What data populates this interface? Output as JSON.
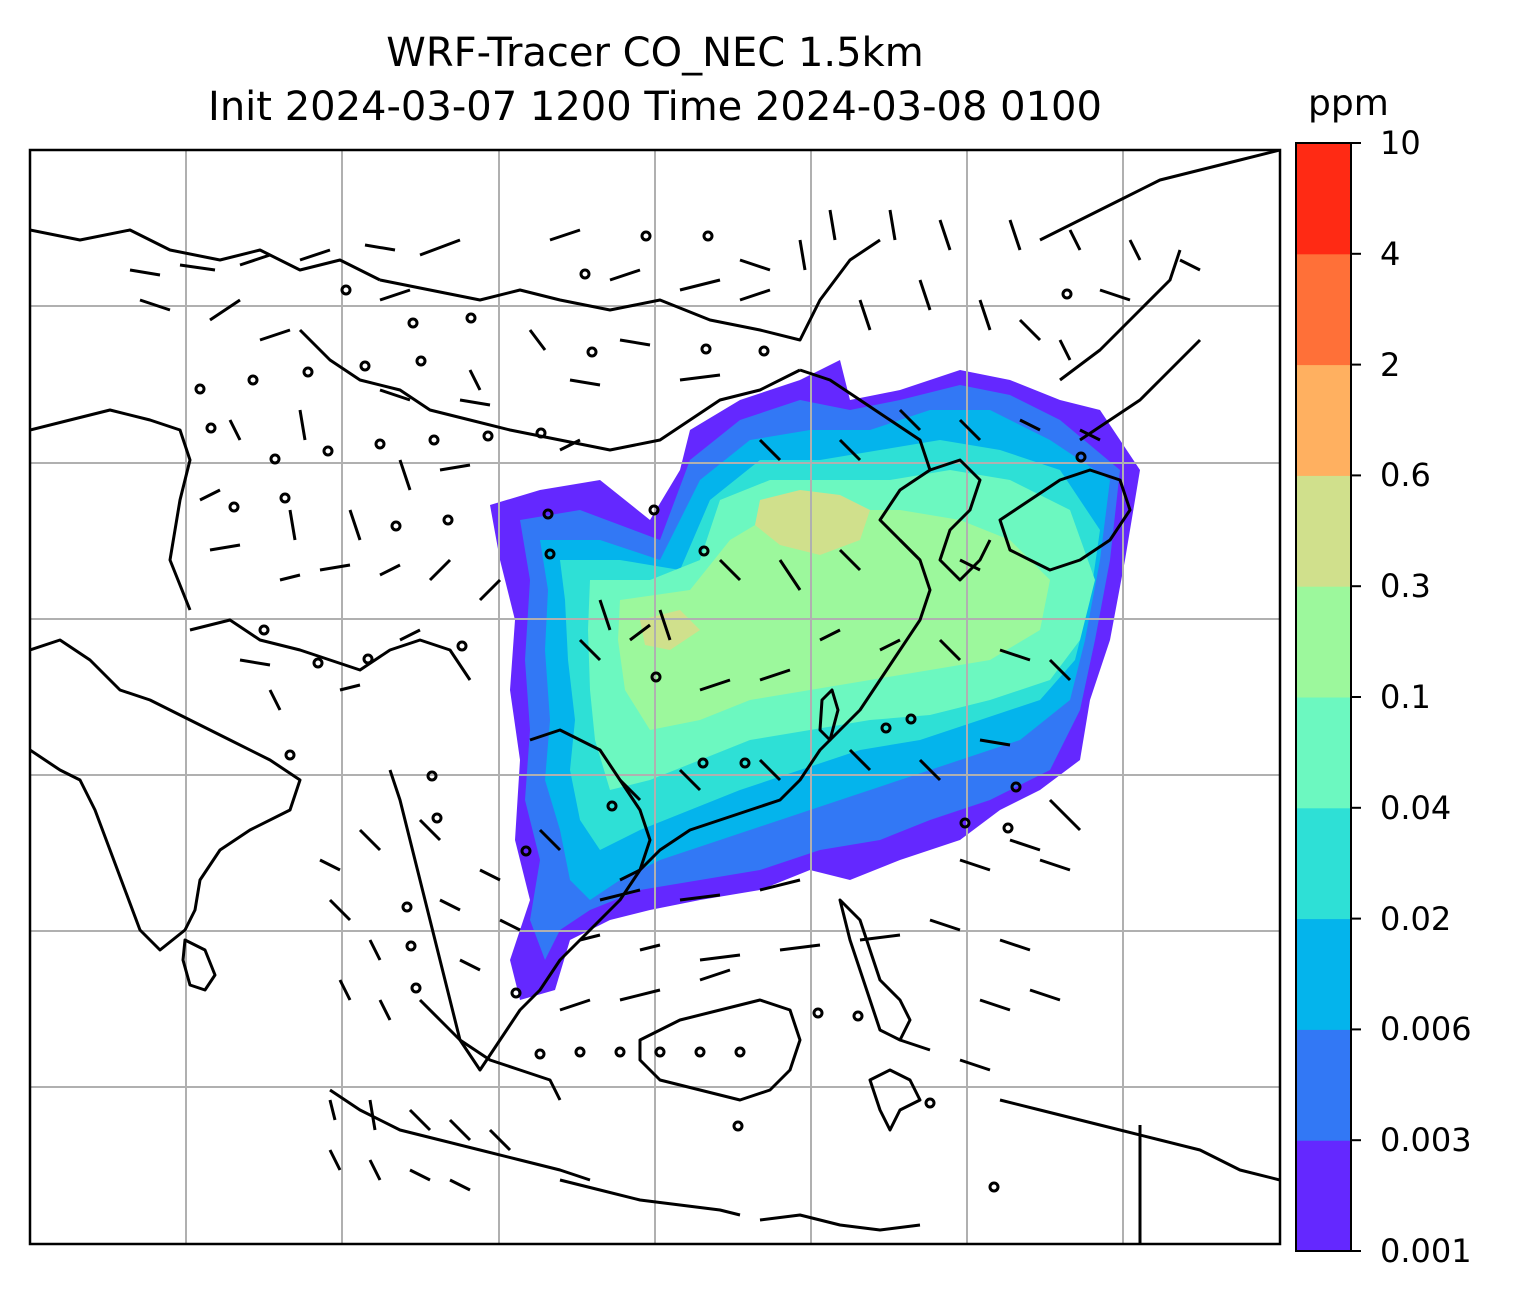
{
  "title": {
    "line1": "WRF-Tracer CO_NEC 1.5km",
    "line2": "Init 2024-03-07 1200 Time 2024-03-08 0100"
  },
  "colorbar": {
    "units": "ppm",
    "ticks": [
      "0.001",
      "0.003",
      "0.006",
      "0.02",
      "0.04",
      "0.1",
      "0.3",
      "0.6",
      "2",
      "4",
      "10"
    ],
    "colors": [
      "#6428ff",
      "#3278f5",
      "#04b4ec",
      "#2ee0d6",
      "#6cf8c0",
      "#9cf89c",
      "#d0e08c",
      "#ffb060",
      "#ff7038",
      "#ff2a14"
    ]
  },
  "map": {
    "gridlines": true,
    "background": "#ffffff",
    "coastline_color": "#000000",
    "gridline_color": "#b0b0b0"
  }
}
